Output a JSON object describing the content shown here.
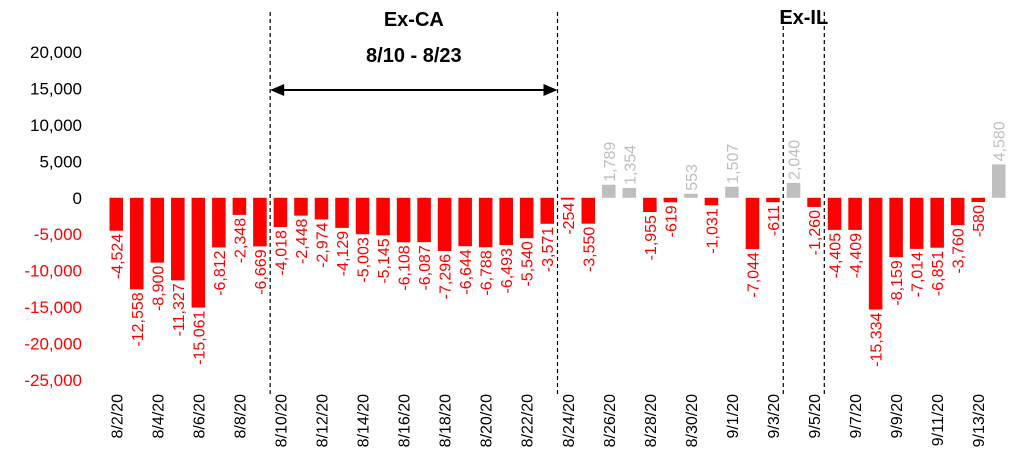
{
  "colors": {
    "negative": "#ff0000",
    "positive": "#bfbfbf",
    "text": "#000000",
    "divider": "#000000"
  },
  "chart_data": {
    "type": "bar",
    "title": "",
    "xlabel": "",
    "ylabel": "",
    "ylim": [
      -25000,
      20000
    ],
    "yticks": [
      20000,
      15000,
      10000,
      5000,
      0,
      -5000,
      -10000,
      -15000,
      -20000,
      -25000
    ],
    "ytick_labels": [
      "20,000",
      "15,000",
      "10,000",
      "5,000",
      "0",
      "-5,000",
      "-10,000",
      "-15,000",
      "-20,000",
      "-25,000"
    ],
    "grid": false,
    "legend": "none",
    "categories": [
      "8/2/20",
      "8/3/20",
      "8/4/20",
      "8/5/20",
      "8/6/20",
      "8/7/20",
      "8/8/20",
      "8/9/20",
      "8/10/20",
      "8/11/20",
      "8/12/20",
      "8/13/20",
      "8/14/20",
      "8/15/20",
      "8/16/20",
      "8/17/20",
      "8/18/20",
      "8/19/20",
      "8/20/20",
      "8/21/20",
      "8/22/20",
      "8/23/20",
      "8/24/20",
      "8/25/20",
      "8/26/20",
      "8/27/20",
      "8/28/20",
      "8/29/20",
      "8/30/20",
      "8/31/20",
      "9/1/20",
      "9/2/20",
      "9/3/20",
      "9/4/20",
      "9/5/20",
      "9/6/20",
      "9/7/20",
      "9/8/20",
      "9/9/20",
      "9/10/20",
      "9/11/20",
      "9/12/20",
      "9/13/20",
      "9/14/20"
    ],
    "values": [
      -4524,
      -12558,
      -8900,
      -11327,
      -15061,
      -6812,
      -2348,
      -6669,
      -4018,
      -2448,
      -2974,
      -4129,
      -5003,
      -5145,
      -6108,
      -6087,
      -7296,
      -6644,
      -6788,
      -6493,
      -5540,
      -3571,
      -254,
      -3550,
      1789,
      1354,
      -1955,
      -619,
      553,
      -1031,
      1507,
      -7044,
      -611,
      2040,
      -1260,
      -4405,
      -4409,
      -15334,
      -8159,
      -7014,
      -6851,
      -3760,
      -580,
      4580
    ],
    "value_labels": [
      "-4,524",
      "-12,558",
      "-8,900",
      "-11,327",
      "-15,061",
      "-6,812",
      "-2,348",
      "-6,669",
      "-4,018",
      "-2,448",
      "-2,974",
      "-4,129",
      "-5,003",
      "-5,145",
      "-6,108",
      "-6,087",
      "-7,296",
      "-6,644",
      "-6,788",
      "-6,493",
      "-5,540",
      "-3,571",
      "-254",
      "-3,550",
      "1,789",
      "1,354",
      "-1,955",
      "-619",
      "553",
      "-1,031",
      "1,507",
      "-7,044",
      "-611",
      "2,040",
      "-1,260",
      "-4,405",
      "-4,409",
      "-15,334",
      "-8,159",
      "-7,014",
      "-6,851",
      "-3,760",
      "-580",
      "4,580"
    ],
    "x_tick_labels": [
      "8/2/20",
      "8/4/20",
      "8/6/20",
      "8/8/20",
      "8/10/20",
      "8/12/20",
      "8/14/20",
      "8/16/20",
      "8/18/20",
      "8/20/20",
      "8/22/20",
      "8/24/20",
      "8/26/20",
      "8/28/20",
      "8/30/20",
      "9/1/20",
      "9/3/20",
      "9/5/20",
      "9/7/20",
      "9/9/20",
      "9/11/20",
      "9/13/20"
    ],
    "annotations": [
      {
        "text": "Ex-CA",
        "range_label": "8/10 - 8/23",
        "from": "8/10/20",
        "to": "8/23/20"
      },
      {
        "text": "Ex-IL",
        "from": "9/4/20",
        "to": "9/5/20"
      }
    ]
  }
}
